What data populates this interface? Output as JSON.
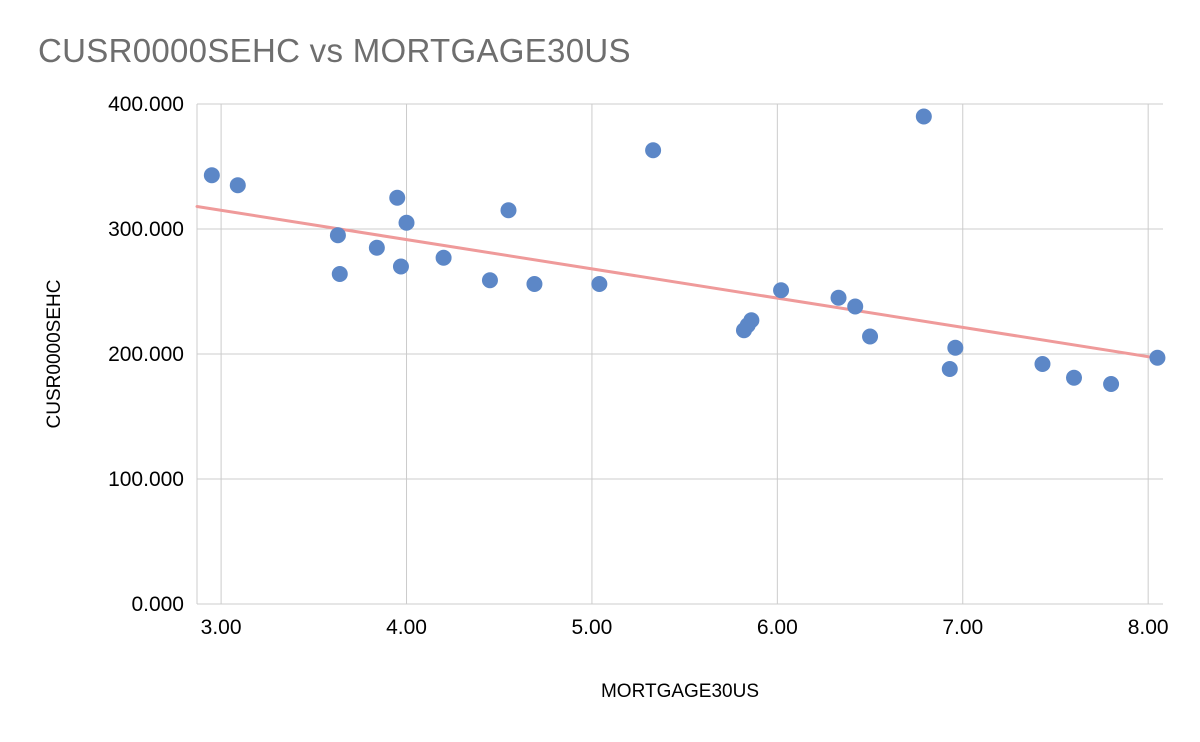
{
  "chart_data": {
    "type": "scatter",
    "title": "CUSR0000SEHC vs MORTGAGE30US",
    "xlabel": "MORTGAGE30US",
    "ylabel": "CUSR0000SEHC",
    "xlim": [
      2.87,
      8.08
    ],
    "ylim": [
      0,
      400
    ],
    "x_ticks": [
      "3.00",
      "4.00",
      "5.00",
      "6.00",
      "7.00",
      "8.00"
    ],
    "y_ticks": [
      "0.000",
      "100.000",
      "200.000",
      "300.000",
      "400.000"
    ],
    "grid": true,
    "legend": "none",
    "point_color": "#5c87c7",
    "trend_color": "#ef9a9a",
    "grid_color": "#cccccc",
    "points": [
      [
        2.95,
        343
      ],
      [
        3.09,
        335
      ],
      [
        3.63,
        295
      ],
      [
        3.64,
        264
      ],
      [
        3.84,
        285
      ],
      [
        3.95,
        325
      ],
      [
        3.97,
        270
      ],
      [
        4.0,
        305
      ],
      [
        4.2,
        277
      ],
      [
        4.45,
        259
      ],
      [
        4.55,
        315
      ],
      [
        4.69,
        256
      ],
      [
        5.04,
        256
      ],
      [
        5.33,
        363
      ],
      [
        5.82,
        219
      ],
      [
        5.84,
        223
      ],
      [
        5.86,
        227
      ],
      [
        6.02,
        251
      ],
      [
        6.33,
        245
      ],
      [
        6.42,
        238
      ],
      [
        6.5,
        214
      ],
      [
        6.79,
        390
      ],
      [
        6.93,
        188
      ],
      [
        6.96,
        205
      ],
      [
        7.43,
        192
      ],
      [
        7.6,
        181
      ],
      [
        7.8,
        176
      ],
      [
        8.05,
        197
      ]
    ],
    "trendline": {
      "x1": 2.87,
      "y1": 318,
      "x2": 8.08,
      "y2": 196
    }
  }
}
